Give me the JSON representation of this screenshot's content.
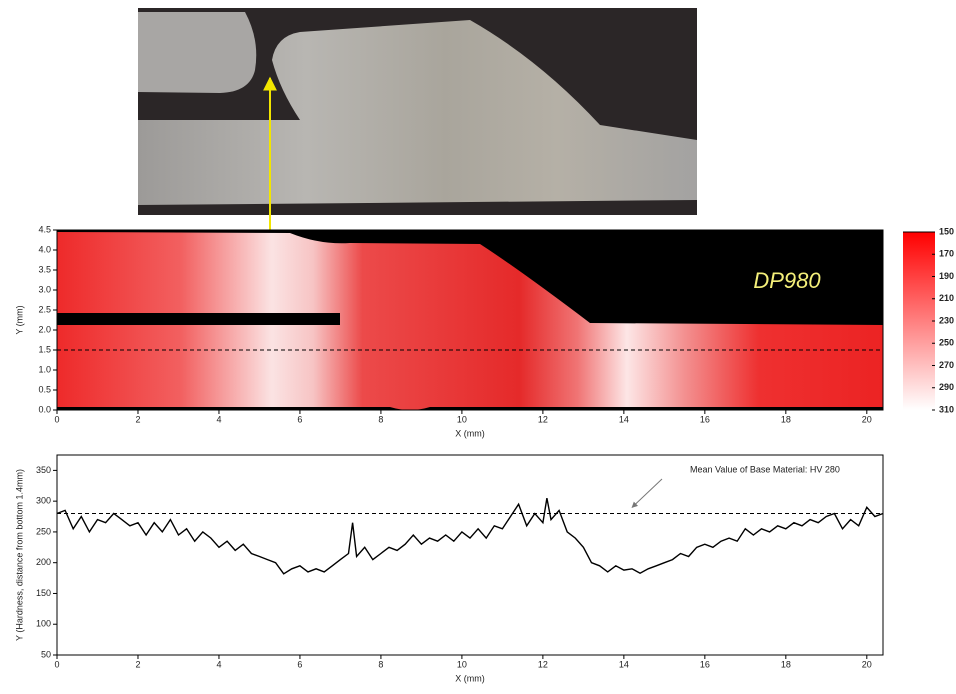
{
  "chart_data": [
    {
      "type": "heatmap",
      "annotation": "DP980",
      "xlabel": "X (mm)",
      "ylabel": "Y (mm)",
      "xlim": [
        0,
        20.4
      ],
      "ylim": [
        0,
        4.5
      ],
      "xticks": [
        0,
        2,
        4,
        6,
        8,
        10,
        12,
        14,
        16,
        18,
        20
      ],
      "yticks": [
        {
          "value": 0,
          "label": "0.0"
        },
        {
          "value": 0.5,
          "label": "0.5"
        },
        {
          "value": 1,
          "label": "1.0"
        },
        {
          "value": 1.5,
          "label": "1.5"
        },
        {
          "value": 2,
          "label": "2.0"
        },
        {
          "value": 2.5,
          "label": "2.5"
        },
        {
          "value": 3,
          "label": "3.0"
        },
        {
          "value": 3.5,
          "label": "3.5"
        },
        {
          "value": 4,
          "label": "4.0"
        },
        {
          "value": 4.5,
          "label": "4.5"
        }
      ],
      "colorbar": {
        "lim": [
          150,
          310
        ],
        "ticks": [
          150,
          170,
          190,
          210,
          230,
          250,
          270,
          290,
          310
        ],
        "colors": [
          "#ffffff",
          "#ff0000"
        ]
      }
    },
    {
      "type": "line",
      "xlabel": "X (mm)",
      "ylabel": "Y (Hardness, distance from bottom 1.4mm)",
      "xlim": [
        0,
        20.4
      ],
      "ylim": [
        50,
        375
      ],
      "xticks": [
        0,
        2,
        4,
        6,
        8,
        10,
        12,
        14,
        16,
        18,
        20
      ],
      "yticks": [
        50,
        100,
        150,
        200,
        250,
        300,
        350
      ],
      "reference_line": {
        "value": 280,
        "label": "Mean Value of Base Material: HV 280"
      },
      "series": [
        {
          "color": "#000000",
          "x": [
            0,
            0.2,
            0.4,
            0.6,
            0.8,
            1.0,
            1.2,
            1.4,
            1.6,
            1.8,
            2.0,
            2.2,
            2.4,
            2.6,
            2.8,
            3.0,
            3.2,
            3.4,
            3.6,
            3.8,
            4.0,
            4.2,
            4.4,
            4.6,
            4.8,
            5.0,
            5.2,
            5.4,
            5.6,
            5.8,
            6.0,
            6.2,
            6.4,
            6.6,
            6.8,
            7.0,
            7.2,
            7.3,
            7.4,
            7.6,
            7.8,
            8.0,
            8.2,
            8.4,
            8.6,
            8.8,
            9.0,
            9.2,
            9.4,
            9.6,
            9.8,
            10.0,
            10.2,
            10.4,
            10.6,
            10.8,
            11.0,
            11.2,
            11.4,
            11.6,
            11.8,
            12.0,
            12.1,
            12.2,
            12.4,
            12.6,
            12.8,
            13.0,
            13.2,
            13.4,
            13.6,
            13.8,
            14.0,
            14.2,
            14.4,
            14.6,
            14.8,
            15.0,
            15.2,
            15.4,
            15.6,
            15.8,
            16.0,
            16.2,
            16.4,
            16.6,
            16.8,
            17.0,
            17.2,
            17.4,
            17.6,
            17.8,
            18.0,
            18.2,
            18.4,
            18.6,
            18.8,
            19.0,
            19.2,
            19.4,
            19.6,
            19.8,
            20.0,
            20.2,
            20.4
          ],
          "values": [
            280,
            285,
            255,
            275,
            250,
            270,
            265,
            280,
            270,
            260,
            265,
            245,
            265,
            250,
            270,
            245,
            255,
            235,
            250,
            240,
            225,
            235,
            220,
            230,
            215,
            210,
            205,
            200,
            182,
            190,
            195,
            185,
            190,
            185,
            195,
            205,
            215,
            265,
            210,
            225,
            205,
            215,
            225,
            220,
            230,
            245,
            230,
            240,
            235,
            245,
            235,
            250,
            240,
            255,
            240,
            260,
            255,
            275,
            295,
            260,
            280,
            265,
            305,
            270,
            285,
            250,
            240,
            225,
            200,
            195,
            185,
            195,
            188,
            190,
            183,
            190,
            195,
            200,
            205,
            215,
            210,
            225,
            230,
            225,
            235,
            240,
            235,
            255,
            245,
            255,
            250,
            260,
            255,
            265,
            260,
            270,
            265,
            275,
            280,
            255,
            270,
            260,
            290,
            275,
            280
          ]
        }
      ]
    }
  ]
}
